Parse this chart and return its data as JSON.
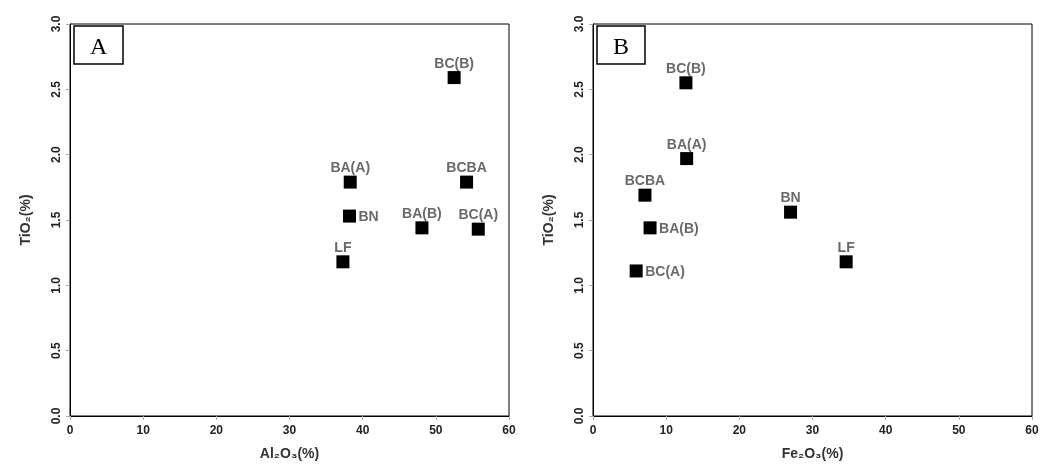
{
  "chart_data": [
    {
      "type": "scatter",
      "title": "A",
      "xlabel": "Al₂O₃(%)",
      "ylabel": "TiO₂(%)",
      "marker": "square",
      "grid": false,
      "series": [
        {
          "color": "#000000",
          "x": [
            52.5,
            38.3,
            54.2,
            38.2,
            48.1,
            55.8,
            37.3
          ],
          "values": [
            2.59,
            1.79,
            1.79,
            1.53,
            1.44,
            1.43,
            1.18
          ]
        }
      ],
      "annotations": [
        {
          "text": "BC(B)",
          "x": 52.5,
          "y": 2.59
        },
        {
          "text": "BA(A)",
          "x": 38.3,
          "y": 1.79
        },
        {
          "text": "BCBA",
          "x": 54.2,
          "y": 1.79
        },
        {
          "text": "BN",
          "x": 38.2,
          "y": 1.53
        },
        {
          "text": "BA(B)",
          "x": 48.1,
          "y": 1.44
        },
        {
          "text": "BC(A)",
          "x": 55.8,
          "y": 1.43
        },
        {
          "text": "LF",
          "x": 37.3,
          "y": 1.18
        }
      ],
      "xlim": [
        0,
        60
      ],
      "xticks": [
        0,
        10,
        20,
        30,
        40,
        50,
        60
      ],
      "ylim": [
        0,
        3
      ],
      "yticks": [
        {
          "value": 0,
          "label": "0.0"
        },
        0.5,
        {
          "value": 1,
          "label": "1.0"
        },
        1.5,
        {
          "value": 2,
          "label": "2.0"
        },
        2.5,
        {
          "value": 3,
          "label": "3.0"
        }
      ]
    },
    {
      "type": "scatter",
      "title": "B",
      "xlabel": "Fe₂O₃(%)",
      "ylabel": "TiO₂(%)",
      "marker": "square",
      "grid": false,
      "series": [
        {
          "color": "#000000",
          "x": [
            12.7,
            12.8,
            7.1,
            27,
            7.8,
            5.9,
            34.6
          ],
          "values": [
            2.55,
            1.97,
            1.69,
            1.56,
            1.44,
            1.11,
            1.18
          ]
        }
      ],
      "annotations": [
        {
          "text": "BC(B)",
          "x": 12.7,
          "y": 2.55
        },
        {
          "text": "BA(A)",
          "x": 12.8,
          "y": 1.97
        },
        {
          "text": "BCBA",
          "x": 7.1,
          "y": 1.69
        },
        {
          "text": "BN",
          "x": 27,
          "y": 1.56
        },
        {
          "text": "BA(B)",
          "x": 7.8,
          "y": 1.44
        },
        {
          "text": "BC(A)",
          "x": 5.9,
          "y": 1.11
        },
        {
          "text": "LF",
          "x": 34.6,
          "y": 1.18
        }
      ],
      "xlim": [
        0,
        60
      ],
      "xticks": [
        0,
        10,
        20,
        30,
        40,
        50,
        60
      ],
      "ylim": [
        0,
        3
      ],
      "yticks": [
        {
          "value": 0,
          "label": "0.0"
        },
        0.5,
        {
          "value": 1,
          "label": "1.0"
        },
        1.5,
        {
          "value": 2,
          "label": "2.0"
        },
        2.5,
        {
          "value": 3,
          "label": "3.0"
        }
      ]
    }
  ]
}
